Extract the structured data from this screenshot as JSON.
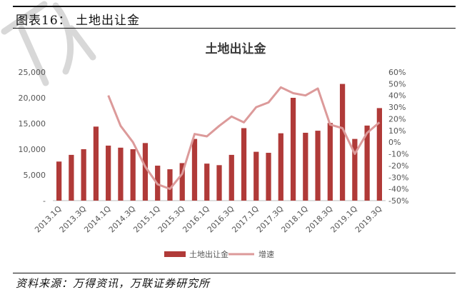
{
  "header": {
    "title": "图表16： 土地出让金"
  },
  "footer": {
    "source": "资料来源：万得资讯，万联证券研究所"
  },
  "chart_data": {
    "type": "bar+line",
    "title": "土地出让金",
    "categories": [
      "2013.1Q",
      "2013.2Q",
      "2013.3Q",
      "2013.4Q",
      "2014.1Q",
      "2014.2Q",
      "2014.3Q",
      "2014.4Q",
      "2015.1Q",
      "2015.2Q",
      "2015.3Q",
      "2015.4Q",
      "2016.1Q",
      "2016.2Q",
      "2016.3Q",
      "2016.4Q",
      "2017.1Q",
      "2017.2Q",
      "2017.3Q",
      "2017.4Q",
      "2018.1Q",
      "2018.2Q",
      "2018.3Q",
      "2018.4Q",
      "2019.1Q",
      "2019.2Q",
      "2019.3Q"
    ],
    "x_tick_labels": [
      "2013.1Q",
      "2013.3Q",
      "2014.1Q",
      "2014.3Q",
      "2015.1Q",
      "2015.3Q",
      "2016.1Q",
      "2016.3Q",
      "2017.1Q",
      "2017.3Q",
      "2018.1Q",
      "2018.3Q",
      "2019.1Q",
      "2019.3Q"
    ],
    "series": [
      {
        "name": "土地出让金",
        "type": "bar",
        "axis": "left",
        "color": "#b03a38",
        "values": [
          7600,
          8900,
          10000,
          14400,
          10700,
          10300,
          10000,
          11200,
          6800,
          6100,
          7300,
          12000,
          7200,
          6900,
          8900,
          14100,
          9500,
          9300,
          13100,
          20000,
          13200,
          13600,
          15100,
          22700,
          12000,
          14600,
          18000
        ]
      },
      {
        "name": "增速",
        "type": "line",
        "axis": "right",
        "color": "#dc9a9a",
        "values": [
          null,
          null,
          null,
          null,
          40,
          14,
          0,
          -21,
          -36,
          -40,
          -27,
          7,
          5,
          14,
          22,
          17,
          30,
          34,
          47,
          42,
          40,
          46,
          15,
          12,
          -10,
          8,
          17
        ]
      }
    ],
    "y_left": {
      "min": 0,
      "max": 25000,
      "ticks": [
        0,
        5000,
        10000,
        15000,
        20000,
        25000
      ],
      "tick_labels": [
        "-",
        "5,000",
        "10,000",
        "15,000",
        "20,000",
        "25,000"
      ]
    },
    "y_right": {
      "min": -50,
      "max": 60,
      "ticks": [
        -50,
        -40,
        -30,
        -20,
        -10,
        0,
        10,
        20,
        30,
        40,
        50,
        60
      ],
      "tick_labels": [
        "-50%",
        "-40%",
        "-30%",
        "-20%",
        "-10%",
        "0%",
        "10%",
        "20%",
        "30%",
        "40%",
        "50%",
        "60%"
      ]
    },
    "legend": {
      "placement": "bottom",
      "items": [
        "土地出让金",
        "增速"
      ]
    },
    "grid": false
  }
}
